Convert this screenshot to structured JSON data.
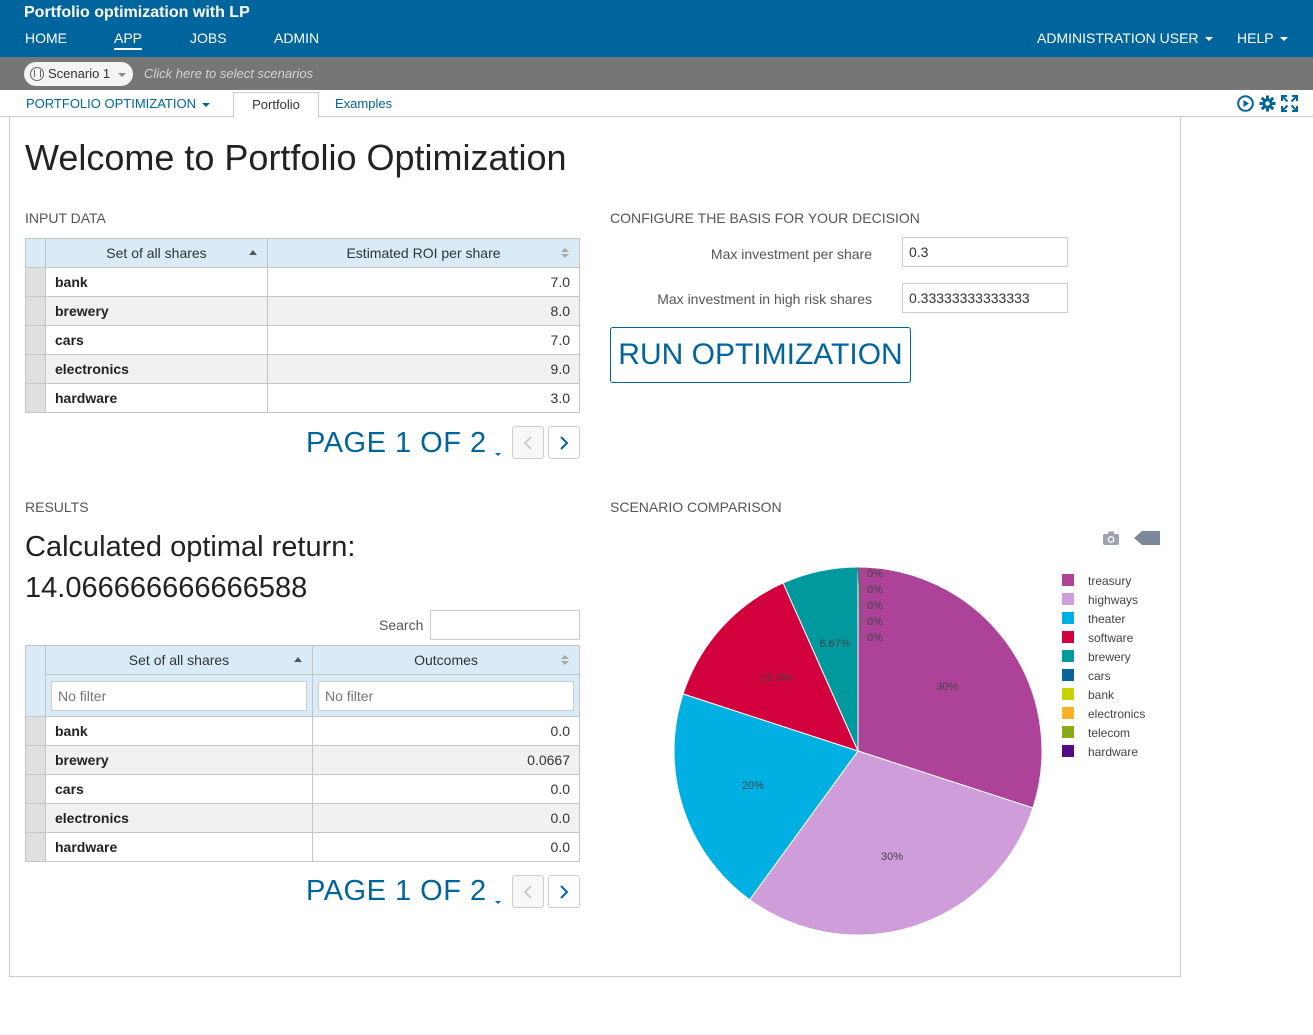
{
  "header": {
    "app_title": "Portfolio optimization with LP",
    "nav": [
      "HOME",
      "APP",
      "JOBS",
      "ADMIN"
    ],
    "user_menu": "ADMINISTRATION USER",
    "help_menu": "HELP"
  },
  "scenario_bar": {
    "scenario": "Scenario 1",
    "hint": "Click here to select scenarios"
  },
  "tabs": {
    "dropdown": "PORTFOLIO OPTIMIZATION",
    "active": "Portfolio",
    "other": "Examples",
    "tool_icons": [
      "play-circle-icon",
      "gear-icon",
      "fullscreen-icon"
    ]
  },
  "page": {
    "title": "Welcome to Portfolio Optimization"
  },
  "input_data": {
    "heading": "INPUT DATA",
    "columns": [
      "Set of all shares",
      "Estimated ROI per share"
    ],
    "rows": [
      {
        "name": "bank",
        "value": "7.0"
      },
      {
        "name": "brewery",
        "value": "8.0"
      },
      {
        "name": "cars",
        "value": "7.0"
      },
      {
        "name": "electronics",
        "value": "9.0"
      },
      {
        "name": "hardware",
        "value": "3.0"
      }
    ],
    "pager": "PAGE 1 OF 2"
  },
  "config": {
    "heading": "CONFIGURE THE BASIS FOR YOUR DECISION",
    "fields": [
      {
        "label": "Max investment per share",
        "value": "0.3"
      },
      {
        "label": "Max investment in high risk shares",
        "value": "0.33333333333333"
      }
    ],
    "run_button": "RUN OPTIMIZATION"
  },
  "results": {
    "heading": "RESULTS",
    "line1": "Calculated optimal return:",
    "line2": "14.066666666666588",
    "search_label": "Search",
    "columns": [
      "Set of all shares",
      "Outcomes"
    ],
    "filter_placeholder": "No filter",
    "rows": [
      {
        "name": "bank",
        "value": "0.0"
      },
      {
        "name": "brewery",
        "value": "0.0667"
      },
      {
        "name": "cars",
        "value": "0.0"
      },
      {
        "name": "electronics",
        "value": "0.0"
      },
      {
        "name": "hardware",
        "value": "0.0"
      }
    ],
    "pager": "PAGE 1 OF 2"
  },
  "comparison": {
    "heading": "SCENARIO COMPARISON",
    "tool_icons": [
      "camera-icon",
      "tag-icon"
    ]
  },
  "chart_data": {
    "type": "pie",
    "title": "",
    "legend_position": "right",
    "slices": [
      {
        "name": "treasury",
        "value": 30,
        "label": "30%",
        "color": "#ac4398"
      },
      {
        "name": "highways",
        "value": 30,
        "label": "30%",
        "color": "#ce9dda"
      },
      {
        "name": "theater",
        "value": 20,
        "label": "20%",
        "color": "#00b0e3"
      },
      {
        "name": "software",
        "value": 13.3,
        "label": "13.3%",
        "color": "#d2003c"
      },
      {
        "name": "brewery",
        "value": 6.67,
        "label": "6.67%",
        "color": "#00999e"
      },
      {
        "name": "cars",
        "value": 0,
        "label": "0%",
        "color": "#0a6496"
      },
      {
        "name": "bank",
        "value": 0,
        "label": "0%",
        "color": "#c6d300"
      },
      {
        "name": "electronics",
        "value": 0,
        "label": "0%",
        "color": "#fbb125"
      },
      {
        "name": "telecom",
        "value": 0,
        "label": "0%",
        "color": "#8aa917"
      },
      {
        "name": "hardware",
        "value": 0,
        "label": "0%",
        "color": "#560b84"
      }
    ]
  }
}
